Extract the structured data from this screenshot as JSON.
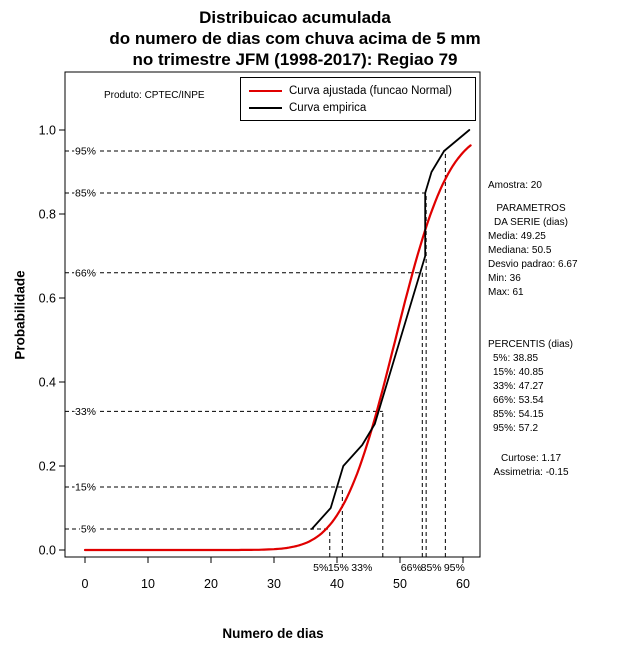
{
  "header": {
    "title_line1": "Distribuicao acumulada",
    "title_line2": "do numero de dias com chuva acima de 5 mm",
    "title_line3": "no trimestre JFM (1998-2017): Regiao 79"
  },
  "chart_data": {
    "type": "line",
    "title": "Distribuicao acumulada do numero de dias com chuva acima de 5 mm no trimestre JFM (1998-2017): Regiao 79",
    "xlabel": "Numero de dias",
    "ylabel": "Probabilidade",
    "xlim": [
      0,
      63
    ],
    "ylim": [
      0,
      1.05
    ],
    "grid": false,
    "x_ticks": [
      0,
      10,
      20,
      30,
      40,
      50,
      60
    ],
    "y_ticks": [
      0.0,
      0.2,
      0.4,
      0.6,
      0.8,
      1.0
    ],
    "annotation": "Produto: CPTEC/INPE",
    "legend": {
      "position": "top",
      "entries": [
        {
          "label": "Curva ajustada (funcao Normal)",
          "color": "#e00000"
        },
        {
          "label": "Curva empirica",
          "color": "#000000"
        }
      ]
    },
    "series": [
      {
        "name": "Curva ajustada (funcao Normal)",
        "color": "#e00000",
        "width": 2.2,
        "model": "normal_cdf",
        "mean": 49.25,
        "sd": 6.67,
        "x_range": [
          0,
          61.2
        ]
      },
      {
        "name": "Curva empirica",
        "color": "#000000",
        "width": 1.8,
        "model": "points",
        "points": [
          [
            36,
            0.05
          ],
          [
            39,
            0.1
          ],
          [
            40,
            0.15
          ],
          [
            41,
            0.2
          ],
          [
            44,
            0.25
          ],
          [
            46,
            0.3
          ],
          [
            47,
            0.35
          ],
          [
            48,
            0.4
          ],
          [
            49,
            0.45
          ],
          [
            50,
            0.5
          ],
          [
            51,
            0.55
          ],
          [
            52,
            0.6
          ],
          [
            53,
            0.65
          ],
          [
            54,
            0.7
          ],
          [
            54,
            0.85
          ],
          [
            55,
            0.9
          ],
          [
            57,
            0.95
          ],
          [
            61,
            1.0
          ]
        ]
      }
    ],
    "percentiles": {
      "labels": [
        "5%",
        "15%",
        "33%",
        "66%",
        "85%",
        "95%"
      ],
      "probs": [
        0.05,
        0.15,
        0.33,
        0.66,
        0.85,
        0.95
      ],
      "values": [
        38.85,
        40.85,
        47.27,
        53.54,
        54.15,
        57.2
      ]
    }
  },
  "stats_panel": {
    "amostra": "Amostra: 20",
    "serie": [
      "PARAMETROS",
      "DA SERIE (dias)",
      "Media: 49.25",
      "Mediana: 50.5",
      "Desvio padrao: 6.67",
      "Min: 36",
      "Max: 61"
    ],
    "percentis": [
      "PERCENTIS (dias)",
      "5%: 38.85",
      "15%: 40.85",
      "33%: 47.27",
      "66%: 53.54",
      "85%: 54.15",
      "95%: 57.2"
    ],
    "momentos": [
      "Curtose: 1.17",
      "Assimetria: -0.15"
    ]
  }
}
